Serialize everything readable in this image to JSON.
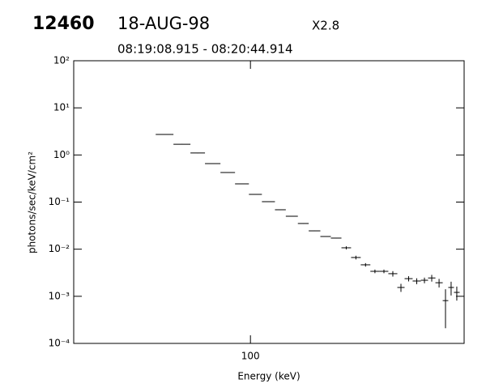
{
  "chart_data": {
    "type": "histogram",
    "title": "12460",
    "date": "18-AUG-98",
    "annotation": "X2.8",
    "subtitle": "08:19:08.915 - 08:20:44.914",
    "x_label": "Energy (keV)",
    "y_label": "photons/sec/keV/cm²",
    "log_x": true,
    "log_y": true,
    "color": "#000000",
    "bins": [
      42.2,
      49.6,
      57.9,
      66.1,
      76.1,
      86.9,
      98.6,
      111,
      125,
      138,
      154,
      170,
      189,
      208,
      229,
      250,
      273,
      298,
      324,
      351,
      381,
      407,
      438,
      472,
      504,
      539,
      576,
      606,
      638,
      672
    ],
    "values": [
      2.73,
      1.69,
      1.1,
      0.656,
      0.425,
      0.244,
      0.146,
      0.102,
      0.0687,
      0.05,
      0.0351,
      0.0245,
      0.0186,
      0.0172,
      0.0107,
      0.00666,
      0.00466,
      0.00339,
      0.00339,
      0.00302,
      0.00154,
      0.00237,
      0.00211,
      0.00219,
      0.00245,
      0.00194,
      0.00081,
      0.00154,
      0.00121
    ],
    "errors": [
      0.03,
      0.017,
      0.011,
      0.0066,
      0.0043,
      0.0024,
      0.0015,
      0.001,
      0.0007,
      0.0005,
      0.0004,
      0.0003,
      0.0002,
      0.0002,
      0.0008,
      0.0006,
      0.0004,
      0.0003,
      0.0003,
      0.0004,
      0.0003,
      0.0003,
      0.0003,
      0.0003,
      0.0004,
      0.0004,
      0.0006,
      0.0005,
      0.0004
    ],
    "xlim": [
      20,
      700
    ],
    "xticks": [
      100
    ],
    "ylim": [
      0.0001,
      100
    ],
    "yticks": [
      {
        "value": 0.0001,
        "label": "10⁻⁴"
      },
      {
        "value": 0.001,
        "label": "10⁻³"
      },
      {
        "value": 0.01,
        "label": "10⁻²"
      },
      {
        "value": 0.1,
        "label": "10⁻¹"
      },
      {
        "value": 1,
        "label": "10⁰"
      },
      {
        "value": 10,
        "label": "10¹"
      },
      {
        "value": 100,
        "label": "10²"
      }
    ]
  }
}
